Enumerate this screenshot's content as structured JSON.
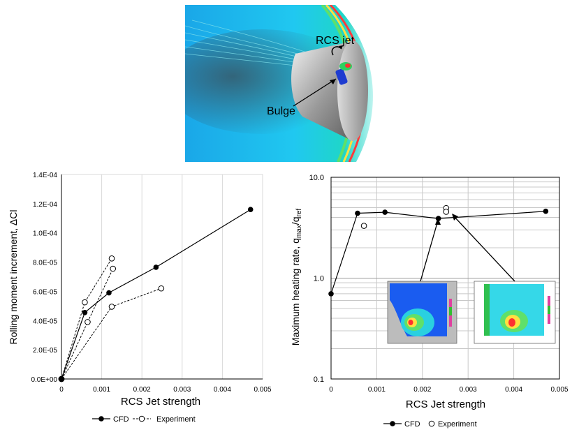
{
  "figure": {
    "cfd_image": {
      "labels": {
        "jet": "RCS jet",
        "bulge": "Bulge"
      }
    }
  },
  "charts": {
    "rolling": {
      "ylabel_text": "Rolling moment increment, ΔCl",
      "xlabel_text": "RCS Jet strength",
      "legend": {
        "cfd": "CFD",
        "exp": "Experiment"
      }
    },
    "heating": {
      "xlabel_text": "RCS Jet strength",
      "ylabel_main": "Maximum heating rate, q",
      "ylabel_sub1": "max",
      "ylabel_sep": "/q",
      "ylabel_sub2": "ref",
      "legend": {
        "cfd": "CFD",
        "exp": "Experiment"
      }
    }
  },
  "chart_data": [
    {
      "type": "line",
      "xlabel": "RCS Jet strength",
      "ylabel": "Rolling moment increment, ΔCl",
      "xlim": [
        0,
        0.005
      ],
      "ylim": [
        0,
        0.00014
      ],
      "x_ticks": [
        "0",
        "0.001",
        "0.002",
        "0.003",
        "0.004",
        "0.005"
      ],
      "y_ticks": [
        "0.0E+00",
        "2.0E-05",
        "4.0E-05",
        "6.0E-05",
        "8.0E-05",
        "1.0E-04",
        "1.2E-04",
        "1.4E-04"
      ],
      "grid": "vertical",
      "legend_position": "bottom",
      "series": [
        {
          "name": "CFD",
          "style": "solid-filled",
          "x": [
            0,
            0.00058,
            0.00118,
            0.00235,
            0.0047
          ],
          "y": [
            0,
            4.55e-05,
            5.9e-05,
            7.65e-05,
            0.000116
          ]
        },
        {
          "name": "Experiment",
          "style": "dashed-open",
          "segments": [
            {
              "x": [
                0,
                0.00058,
                0.00125
              ],
              "y": [
                0,
                5.25e-05,
                8.25e-05
              ]
            },
            {
              "x": [
                0,
                0.00065,
                0.00128
              ],
              "y": [
                0,
                3.9e-05,
                7.55e-05
              ]
            },
            {
              "x": [
                0,
                0.00125,
                0.00248
              ],
              "y": [
                0,
                4.95e-05,
                6.2e-05
              ]
            }
          ]
        }
      ]
    },
    {
      "type": "line",
      "xlabel": "RCS Jet strength",
      "ylabel": "Maximum heating rate, qmax/qref",
      "xlim": [
        0,
        0.005
      ],
      "ylim": [
        0.1,
        10
      ],
      "yscale": "log",
      "x_ticks": [
        "0",
        "0.001",
        "0.002",
        "0.003",
        "0.004",
        "0.005"
      ],
      "y_ticks": [
        "0.1",
        "1.0",
        "10.0"
      ],
      "grid": "both",
      "legend_position": "bottom",
      "series": [
        {
          "name": "CFD",
          "style": "solid-filled",
          "x": [
            0,
            0.00058,
            0.00118,
            0.00235,
            0.0047
          ],
          "y": [
            0.7,
            4.4,
            4.5,
            3.9,
            4.6
          ]
        },
        {
          "name": "Experiment",
          "style": "open-markers",
          "x": [
            0.00072,
            0.00252,
            0.00252
          ],
          "y": [
            3.3,
            4.95,
            4.55
          ]
        }
      ]
    }
  ]
}
